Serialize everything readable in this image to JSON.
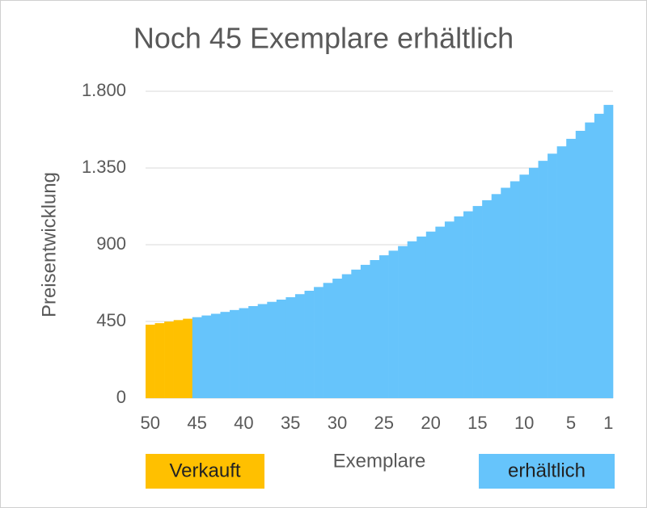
{
  "chart_data": {
    "type": "bar",
    "title": "Noch 45 Exemplare erhältlich",
    "xlabel": "Exemplare",
    "ylabel": "Preisentwicklung",
    "categories": [
      "50",
      null,
      null,
      null,
      null,
      "45",
      null,
      null,
      null,
      null,
      "40",
      null,
      null,
      null,
      null,
      "35",
      null,
      null,
      null,
      null,
      "30",
      null,
      null,
      null,
      null,
      "25",
      null,
      null,
      null,
      null,
      "20",
      null,
      null,
      null,
      null,
      "15",
      null,
      null,
      null,
      null,
      "10",
      null,
      null,
      null,
      null,
      "5",
      null,
      null,
      null,
      "1"
    ],
    "series": [
      {
        "name": "Verkauft",
        "color": "#ffc000",
        "values": [
          431,
          440,
          449,
          458,
          466,
          null,
          null,
          null,
          null,
          null,
          null,
          null,
          null,
          null,
          null,
          null,
          null,
          null,
          null,
          null,
          null,
          null,
          null,
          null,
          null,
          null,
          null,
          null,
          null,
          null,
          null,
          null,
          null,
          null,
          null,
          null,
          null,
          null,
          null,
          null,
          null,
          null,
          null,
          null,
          null,
          null,
          null,
          null,
          null,
          null
        ]
      },
      {
        "name": "erhältlich",
        "color": "#66c4fb",
        "values": [
          null,
          null,
          null,
          null,
          null,
          475,
          485,
          495,
          506,
          517,
          528,
          540,
          552,
          565,
          578,
          592,
          610,
          630,
          652,
          676,
          701,
          727,
          754,
          782,
          810,
          838,
          865,
          892,
          920,
          948,
          977,
          1006,
          1036,
          1066,
          1096,
          1127,
          1161,
          1197,
          1234,
          1272,
          1311,
          1351,
          1392,
          1434,
          1477,
          1521,
          1568,
          1617,
          1668,
          1720
        ]
      }
    ],
    "ylim": [
      0,
      1800
    ],
    "yticks": [
      0,
      450,
      900,
      {
        "value": 1350,
        "label": "1.350"
      },
      {
        "value": 1800,
        "label": "1.800"
      }
    ],
    "grid": true
  }
}
